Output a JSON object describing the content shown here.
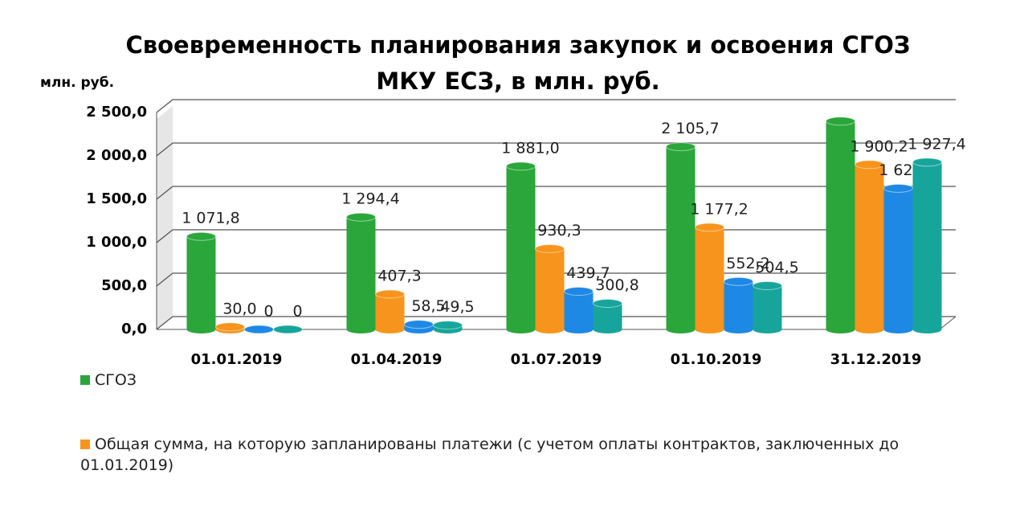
{
  "chart_data": {
    "type": "bar3d",
    "title": [
      "Своевременность планирования закупок и освоения СГОЗ",
      "МКУ ЕСЗ, в млн. руб."
    ],
    "y_label": "млн. руб.",
    "categories": [
      "01.01.2019",
      "01.04.2019",
      "01.07.2019",
      "01.10.2019",
      "31.12.2019"
    ],
    "ylim": [
      0,
      2500
    ],
    "yticks": [
      {
        "value": 0,
        "label": "0,0"
      },
      {
        "value": 500,
        "label": "500,0"
      },
      {
        "value": 1000,
        "label": "1 000,0"
      },
      {
        "value": 1500,
        "label": "1 500,0"
      },
      {
        "value": 2000,
        "label": "2 000,0"
      },
      {
        "value": 2500,
        "label": "2 500,0"
      }
    ],
    "grid": true,
    "series": [
      {
        "name": "СГОЗ",
        "color": "#2aa63a",
        "values": [
          1071.8,
          1294.4,
          1881.0,
          2105.7,
          2400
        ],
        "value_labels": [
          "1 071,8",
          "1 294,4",
          "1 881,0",
          "2 105,7",
          null
        ]
      },
      {
        "name": "Общая сумма, на которую запланированы платежи (с учетом оплаты контрактов, заключенных до 01.01.2019)",
        "color": "#f7941d",
        "values": [
          30.0,
          407.3,
          930.3,
          1177.2,
          1900.2
        ],
        "value_labels": [
          "30,0",
          "407,3",
          "930,3",
          "1 177,2",
          "1 900,2"
        ]
      },
      {
        "color": "#1e88e5",
        "values": [
          0,
          58.5,
          439.7,
          552.2,
          1626.6
        ],
        "value_labels": [
          "0",
          "58,5",
          "439,7",
          "552,2",
          "1 626,6"
        ]
      },
      {
        "color": "#17a59b",
        "values": [
          0,
          49.5,
          300.8,
          504.5,
          1927.4
        ],
        "value_labels": [
          "0",
          "49,5",
          "300,8",
          "504,5",
          "1 927,4"
        ]
      }
    ]
  }
}
